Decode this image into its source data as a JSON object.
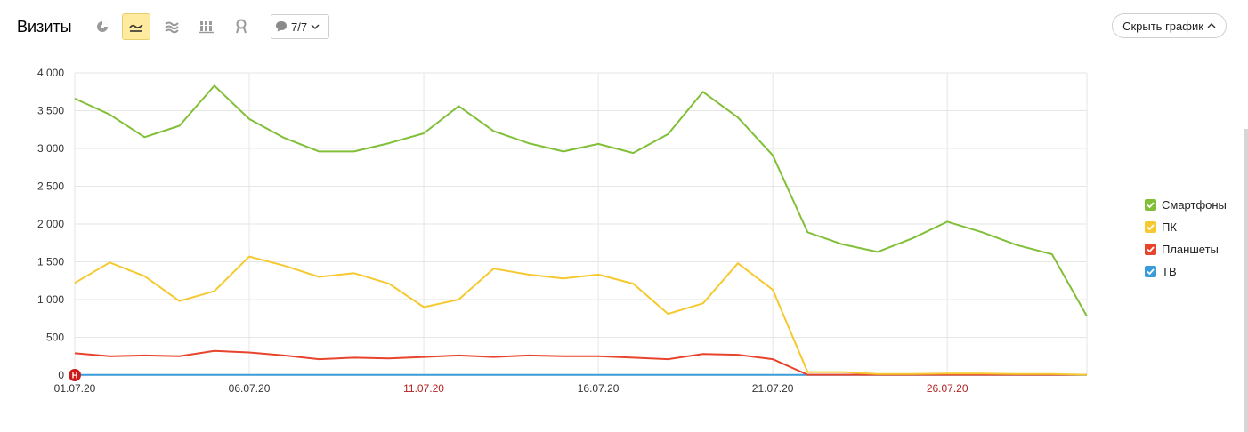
{
  "toolbar": {
    "title": "Визиты",
    "icons": [
      {
        "name": "pie-chart-icon",
        "active": false
      },
      {
        "name": "line-chart-icon",
        "active": true
      },
      {
        "name": "area-chart-icon",
        "active": false
      },
      {
        "name": "stacked-bar-chart-icon",
        "active": false
      },
      {
        "name": "map-pin-icon",
        "active": false
      }
    ],
    "annotations_label": "7/7",
    "hide_chart_label": "Скрыть график"
  },
  "colors": {
    "smartphones": "#82bf38",
    "pc": "#f5c92f",
    "tablets": "#e8432d",
    "tv": "#3a9bd9",
    "grid": "#e6e6e6",
    "weekend_tick": "#b22222",
    "active_button": "#ffeba0",
    "marker": "#cc1a1a"
  },
  "chart_data": {
    "type": "line",
    "xlabel": "",
    "ylabel": "",
    "ylim": [
      0,
      4000
    ],
    "yticks": [
      "4 000",
      "3 500",
      "3 000",
      "2 500",
      "2 000",
      "1 500",
      "1 000",
      "500",
      "0"
    ],
    "x": [
      "01.07.20",
      "02.07.20",
      "03.07.20",
      "04.07.20",
      "05.07.20",
      "06.07.20",
      "07.07.20",
      "08.07.20",
      "09.07.20",
      "10.07.20",
      "11.07.20",
      "12.07.20",
      "13.07.20",
      "14.07.20",
      "15.07.20",
      "16.07.20",
      "17.07.20",
      "18.07.20",
      "19.07.20",
      "20.07.20",
      "21.07.20",
      "22.07.20",
      "23.07.20",
      "24.07.20",
      "25.07.20",
      "26.07.20",
      "27.07.20",
      "28.07.20",
      "29.07.20",
      "30.07.20"
    ],
    "xticks": [
      {
        "label": "01.07.20",
        "weekend": false
      },
      {
        "label": "06.07.20",
        "weekend": false
      },
      {
        "label": "11.07.20",
        "weekend": true
      },
      {
        "label": "16.07.20",
        "weekend": false
      },
      {
        "label": "21.07.20",
        "weekend": false
      },
      {
        "label": "26.07.20",
        "weekend": true
      }
    ],
    "grid": true,
    "legend_position": "right",
    "annotation_marker": {
      "x": "01.07.20",
      "label": "Н"
    },
    "series": [
      {
        "name": "Смартфоны",
        "key": "smartphones",
        "values": [
          3660,
          3450,
          3150,
          3300,
          3830,
          3390,
          3140,
          2960,
          2960,
          3070,
          3200,
          3560,
          3230,
          3070,
          2960,
          3060,
          2940,
          3190,
          3750,
          3410,
          2910,
          1890,
          1730,
          1630,
          1810,
          2030,
          1890,
          1720,
          1600,
          780
        ]
      },
      {
        "name": "ПК",
        "key": "pc",
        "values": [
          1220,
          1490,
          1310,
          980,
          1110,
          1570,
          1450,
          1300,
          1350,
          1210,
          900,
          1000,
          1410,
          1330,
          1280,
          1330,
          1210,
          810,
          950,
          1480,
          1130,
          40,
          40,
          15,
          15,
          20,
          20,
          15,
          15,
          5
        ]
      },
      {
        "name": "Планшеты",
        "key": "tablets",
        "values": [
          290,
          250,
          260,
          250,
          320,
          300,
          260,
          210,
          230,
          220,
          240,
          260,
          240,
          260,
          250,
          250,
          230,
          210,
          280,
          270,
          210,
          5,
          5,
          5,
          5,
          5,
          5,
          5,
          5,
          5
        ]
      },
      {
        "name": "ТВ",
        "key": "tv",
        "values": [
          2,
          2,
          2,
          2,
          2,
          2,
          2,
          2,
          2,
          2,
          2,
          2,
          2,
          2,
          2,
          2,
          2,
          2,
          2,
          2,
          2,
          2,
          2,
          2,
          2,
          2,
          2,
          2,
          2,
          2
        ]
      }
    ]
  }
}
